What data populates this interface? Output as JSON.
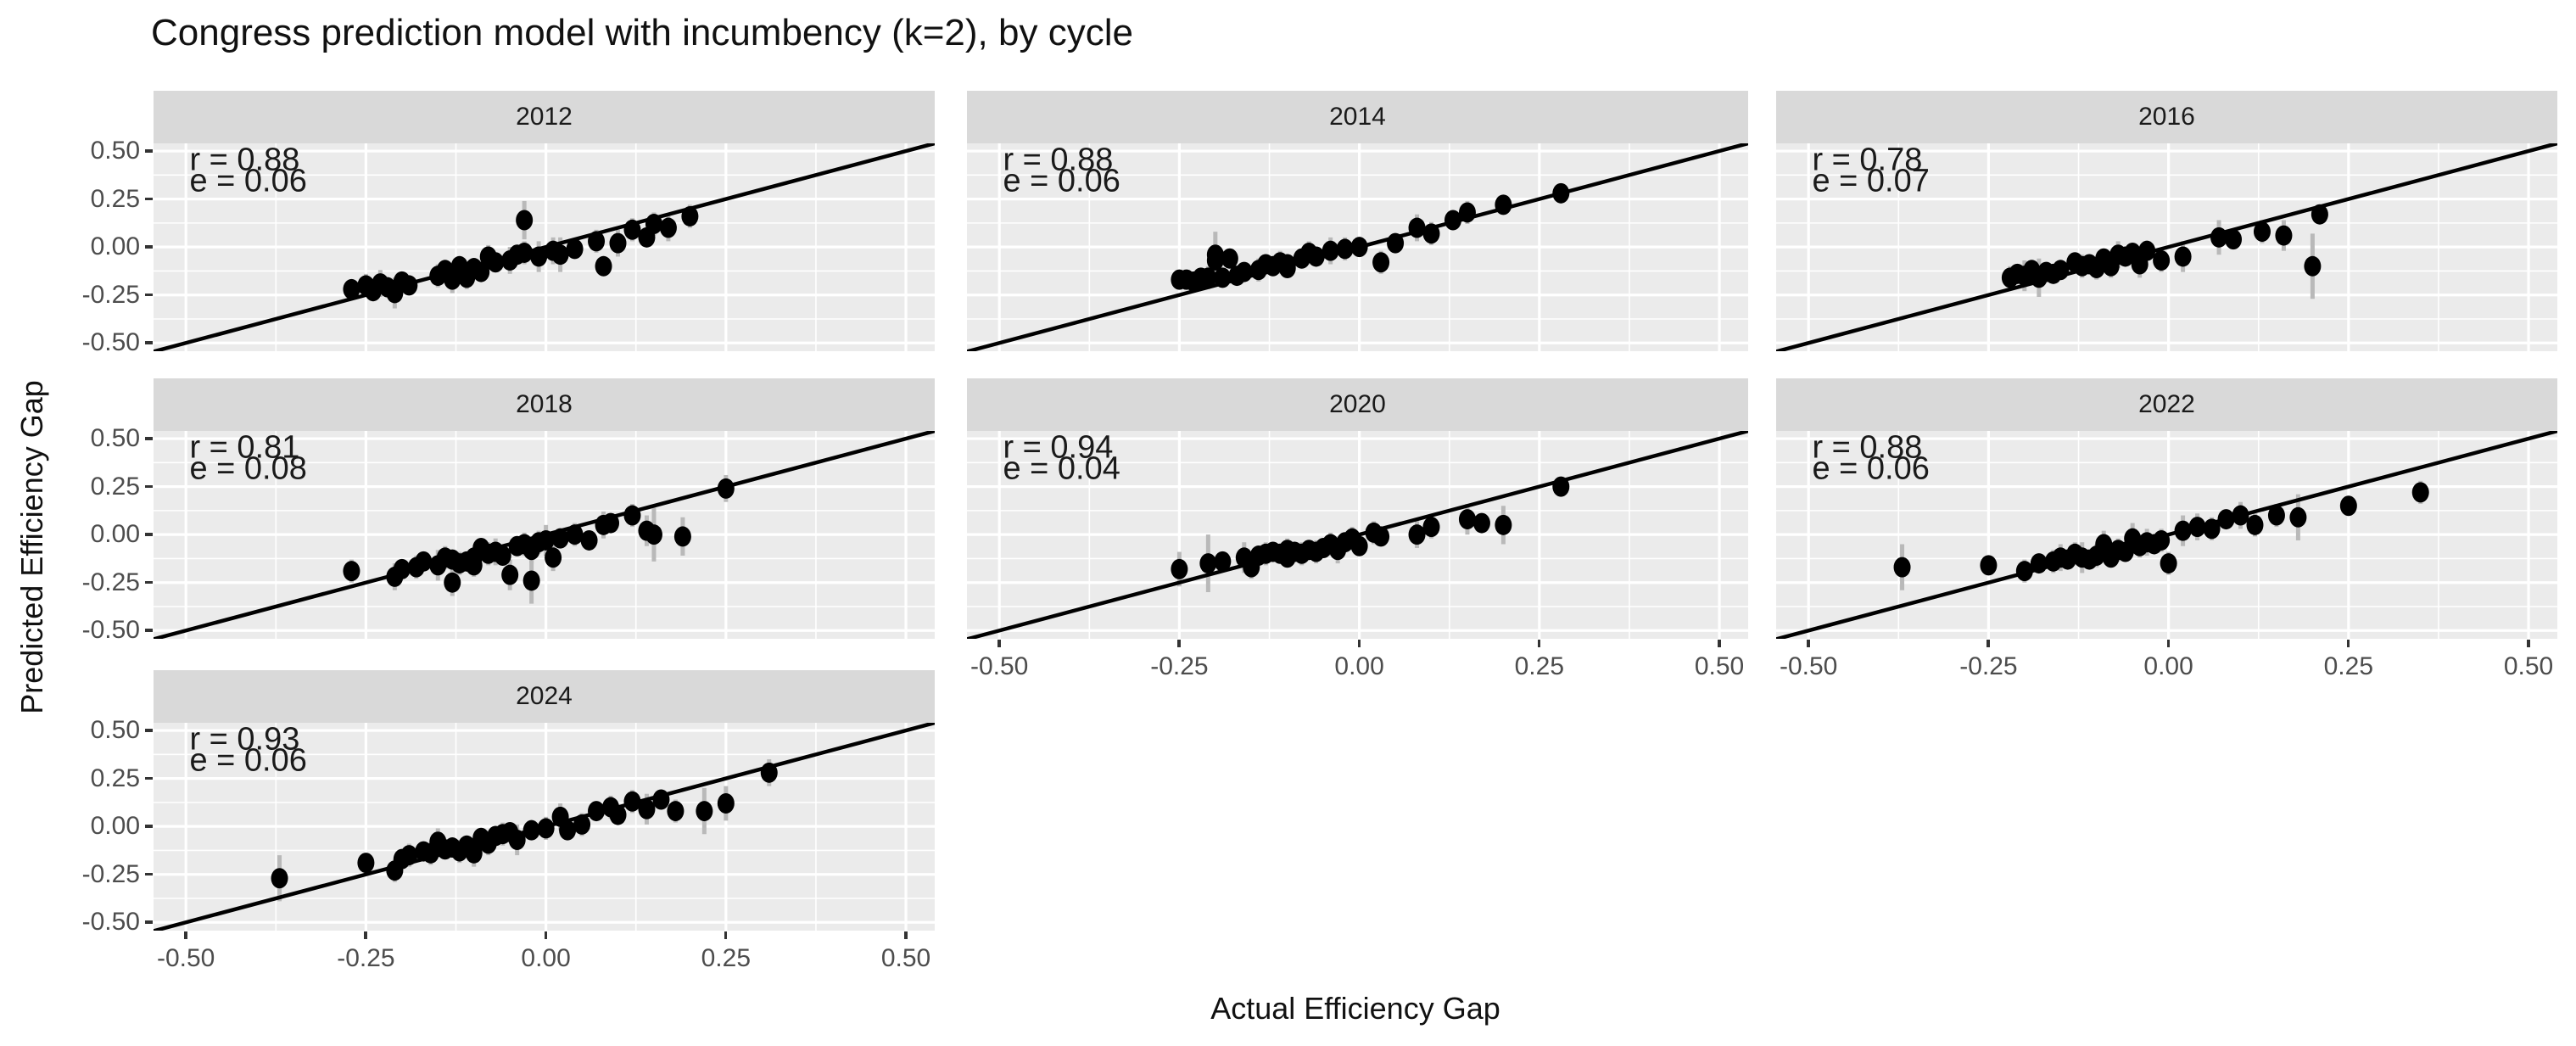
{
  "chart_data": {
    "type": "scatter",
    "title": "Congress prediction model with incumbency (k=2), by cycle",
    "xlabel": "Actual Efficiency Gap",
    "ylabel": "Predicted Efficiency Gap",
    "xlim": [
      -0.55,
      0.55
    ],
    "ylim": [
      -0.55,
      0.55
    ],
    "grid": "on",
    "identity_line": true,
    "legend_position": "none",
    "tick_values": [
      -0.5,
      -0.25,
      0,
      0.25,
      0.5
    ],
    "tick_labels": [
      "-0.50",
      "-0.25",
      "0.00",
      "0.25",
      "0.50"
    ],
    "colors": {
      "panel_bg": "#EBEBEB",
      "strip_bg": "#D9D9D9",
      "grid": "#FFFFFF",
      "point": "#000000",
      "errorbar": "#B9B9B9",
      "identity_line": "#000000",
      "tick_label": "#4D4D4D",
      "annotation": "#1A1A1A"
    },
    "facets": [
      {
        "label": "2012",
        "r": 0.88,
        "e": 0.06,
        "r_label": "r = 0.88",
        "e_label": "e = 0.06",
        "points": [
          [
            -0.27,
            -0.22,
            0.05
          ],
          [
            -0.25,
            -0.2,
            0.06
          ],
          [
            -0.24,
            -0.23,
            0.05
          ],
          [
            -0.23,
            -0.19,
            0.07
          ],
          [
            -0.22,
            -0.21,
            0.04
          ],
          [
            -0.21,
            -0.24,
            0.08
          ],
          [
            -0.2,
            -0.18,
            0.05
          ],
          [
            -0.19,
            -0.2,
            0.04
          ],
          [
            -0.15,
            -0.15,
            0.06
          ],
          [
            -0.14,
            -0.12,
            0.05
          ],
          [
            -0.13,
            -0.17,
            0.07
          ],
          [
            -0.12,
            -0.1,
            0.05
          ],
          [
            -0.12,
            -0.14,
            0.04
          ],
          [
            -0.11,
            -0.16,
            0.06
          ],
          [
            -0.1,
            -0.11,
            0.05
          ],
          [
            -0.09,
            -0.13,
            0.04
          ],
          [
            -0.08,
            -0.05,
            0.06
          ],
          [
            -0.07,
            -0.08,
            0.05
          ],
          [
            -0.05,
            -0.07,
            0.07
          ],
          [
            -0.04,
            -0.04,
            0.05
          ],
          [
            -0.03,
            0.14,
            0.1
          ],
          [
            -0.03,
            -0.03,
            0.06
          ],
          [
            -0.01,
            -0.05,
            0.08
          ],
          [
            0.01,
            -0.02,
            0.07
          ],
          [
            0.02,
            -0.04,
            0.09
          ],
          [
            0.04,
            -0.01,
            0.05
          ],
          [
            0.07,
            0.03,
            0.06
          ],
          [
            0.08,
            -0.1,
            0.05
          ],
          [
            0.1,
            0.02,
            0.07
          ],
          [
            0.12,
            0.09,
            0.06
          ],
          [
            0.14,
            0.05,
            0.05
          ],
          [
            0.15,
            0.12,
            0.06
          ],
          [
            0.17,
            0.1,
            0.07
          ],
          [
            0.2,
            0.16,
            0.06
          ]
        ]
      },
      {
        "label": "2014",
        "r": 0.88,
        "e": 0.06,
        "r_label": "r = 0.88",
        "e_label": "e = 0.06",
        "points": [
          [
            -0.25,
            -0.17,
            0.04
          ],
          [
            -0.24,
            -0.17,
            0.05
          ],
          [
            -0.23,
            -0.18,
            0.04
          ],
          [
            -0.22,
            -0.16,
            0.05
          ],
          [
            -0.21,
            -0.16,
            0.06
          ],
          [
            -0.2,
            -0.04,
            0.12
          ],
          [
            -0.2,
            -0.07,
            0.06
          ],
          [
            -0.19,
            -0.16,
            0.05
          ],
          [
            -0.18,
            -0.06,
            0.05
          ],
          [
            -0.17,
            -0.15,
            0.04
          ],
          [
            -0.16,
            -0.13,
            0.05
          ],
          [
            -0.14,
            -0.12,
            0.06
          ],
          [
            -0.13,
            -0.09,
            0.05
          ],
          [
            -0.12,
            -0.1,
            0.05
          ],
          [
            -0.11,
            -0.08,
            0.06
          ],
          [
            -0.1,
            -0.09,
            0.05
          ],
          [
            -0.1,
            -0.11,
            0.04
          ],
          [
            -0.08,
            -0.06,
            0.05
          ],
          [
            -0.07,
            -0.03,
            0.06
          ],
          [
            -0.06,
            -0.05,
            0.05
          ],
          [
            -0.04,
            -0.02,
            0.07
          ],
          [
            -0.02,
            -0.01,
            0.06
          ],
          [
            0.0,
            0.0,
            0.05
          ],
          [
            0.03,
            -0.08,
            0.06
          ],
          [
            0.05,
            0.02,
            0.05
          ],
          [
            0.08,
            0.1,
            0.07
          ],
          [
            0.1,
            0.07,
            0.06
          ],
          [
            0.13,
            0.14,
            0.05
          ],
          [
            0.15,
            0.18,
            0.06
          ],
          [
            0.2,
            0.22,
            0.05
          ],
          [
            0.28,
            0.28,
            0.04
          ]
        ]
      },
      {
        "label": "2016",
        "r": 0.78,
        "e": 0.07,
        "r_label": "r = 0.78",
        "e_label": "e = 0.07",
        "points": [
          [
            -0.22,
            -0.16,
            0.06
          ],
          [
            -0.21,
            -0.14,
            0.05
          ],
          [
            -0.2,
            -0.15,
            0.08
          ],
          [
            -0.19,
            -0.12,
            0.05
          ],
          [
            -0.18,
            -0.16,
            0.1
          ],
          [
            -0.17,
            -0.13,
            0.04
          ],
          [
            -0.16,
            -0.14,
            0.05
          ],
          [
            -0.15,
            -0.12,
            0.04
          ],
          [
            -0.13,
            -0.08,
            0.05
          ],
          [
            -0.12,
            -0.1,
            0.06
          ],
          [
            -0.11,
            -0.09,
            0.05
          ],
          [
            -0.1,
            -0.11,
            0.06
          ],
          [
            -0.09,
            -0.06,
            0.05
          ],
          [
            -0.08,
            -0.1,
            0.06
          ],
          [
            -0.07,
            -0.04,
            0.07
          ],
          [
            -0.06,
            -0.05,
            0.04
          ],
          [
            -0.05,
            -0.03,
            0.05
          ],
          [
            -0.04,
            -0.09,
            0.07
          ],
          [
            -0.03,
            -0.02,
            0.05
          ],
          [
            -0.01,
            -0.07,
            0.06
          ],
          [
            0.02,
            -0.05,
            0.08
          ],
          [
            0.07,
            0.05,
            0.09
          ],
          [
            0.09,
            0.04,
            0.05
          ],
          [
            0.13,
            0.08,
            0.06
          ],
          [
            0.16,
            0.06,
            0.08
          ],
          [
            0.2,
            -0.1,
            0.17
          ],
          [
            0.21,
            0.17,
            0.05
          ]
        ]
      },
      {
        "label": "2018",
        "r": 0.81,
        "e": 0.08,
        "r_label": "r = 0.81",
        "e_label": "e = 0.08",
        "points": [
          [
            -0.27,
            -0.19,
            0.06
          ],
          [
            -0.21,
            -0.22,
            0.07
          ],
          [
            -0.2,
            -0.18,
            0.05
          ],
          [
            -0.18,
            -0.17,
            0.06
          ],
          [
            -0.17,
            -0.14,
            0.05
          ],
          [
            -0.15,
            -0.16,
            0.08
          ],
          [
            -0.14,
            -0.12,
            0.06
          ],
          [
            -0.13,
            -0.13,
            0.05
          ],
          [
            -0.13,
            -0.25,
            0.07
          ],
          [
            -0.12,
            -0.15,
            0.06
          ],
          [
            -0.11,
            -0.14,
            0.05
          ],
          [
            -0.1,
            -0.12,
            0.04
          ],
          [
            -0.1,
            -0.16,
            0.06
          ],
          [
            -0.09,
            -0.07,
            0.05
          ],
          [
            -0.08,
            -0.1,
            0.06
          ],
          [
            -0.07,
            -0.09,
            0.07
          ],
          [
            -0.06,
            -0.11,
            0.05
          ],
          [
            -0.05,
            -0.21,
            0.08
          ],
          [
            -0.04,
            -0.06,
            0.05
          ],
          [
            -0.03,
            -0.05,
            0.06
          ],
          [
            -0.02,
            -0.08,
            0.07
          ],
          [
            -0.02,
            -0.24,
            0.12
          ],
          [
            -0.01,
            -0.04,
            0.06
          ],
          [
            0.0,
            -0.03,
            0.08
          ],
          [
            0.01,
            -0.12,
            0.07
          ],
          [
            0.02,
            -0.02,
            0.05
          ],
          [
            0.04,
            0.0,
            0.06
          ],
          [
            0.06,
            -0.03,
            0.05
          ],
          [
            0.08,
            0.05,
            0.07
          ],
          [
            0.09,
            0.06,
            0.05
          ],
          [
            0.12,
            0.1,
            0.06
          ],
          [
            0.14,
            0.02,
            0.08
          ],
          [
            0.15,
            0.0,
            0.14
          ],
          [
            0.19,
            -0.01,
            0.1
          ],
          [
            0.25,
            0.24,
            0.07
          ]
        ]
      },
      {
        "label": "2020",
        "r": 0.94,
        "e": 0.04,
        "r_label": "r = 0.94",
        "e_label": "e = 0.04",
        "points": [
          [
            -0.25,
            -0.18,
            0.09
          ],
          [
            -0.21,
            -0.15,
            0.15
          ],
          [
            -0.19,
            -0.14,
            0.05
          ],
          [
            -0.16,
            -0.12,
            0.08
          ],
          [
            -0.15,
            -0.17,
            0.06
          ],
          [
            -0.14,
            -0.11,
            0.05
          ],
          [
            -0.13,
            -0.1,
            0.06
          ],
          [
            -0.12,
            -0.09,
            0.05
          ],
          [
            -0.11,
            -0.1,
            0.05
          ],
          [
            -0.1,
            -0.08,
            0.06
          ],
          [
            -0.1,
            -0.12,
            0.05
          ],
          [
            -0.09,
            -0.09,
            0.04
          ],
          [
            -0.08,
            -0.1,
            0.06
          ],
          [
            -0.07,
            -0.08,
            0.05
          ],
          [
            -0.06,
            -0.09,
            0.06
          ],
          [
            -0.05,
            -0.07,
            0.05
          ],
          [
            -0.04,
            -0.05,
            0.06
          ],
          [
            -0.03,
            -0.08,
            0.07
          ],
          [
            -0.02,
            -0.04,
            0.05
          ],
          [
            -0.01,
            -0.02,
            0.06
          ],
          [
            0.0,
            -0.06,
            0.05
          ],
          [
            0.02,
            0.01,
            0.06
          ],
          [
            0.03,
            -0.01,
            0.05
          ],
          [
            0.08,
            0.0,
            0.07
          ],
          [
            0.1,
            0.04,
            0.06
          ],
          [
            0.15,
            0.08,
            0.08
          ],
          [
            0.17,
            0.06,
            0.05
          ],
          [
            0.2,
            0.05,
            0.1
          ],
          [
            0.28,
            0.25,
            0.05
          ]
        ]
      },
      {
        "label": "2022",
        "r": 0.88,
        "e": 0.06,
        "r_label": "r = 0.88",
        "e_label": "e = 0.06",
        "points": [
          [
            -0.37,
            -0.17,
            0.12
          ],
          [
            -0.25,
            -0.16,
            0.05
          ],
          [
            -0.2,
            -0.19,
            0.06
          ],
          [
            -0.18,
            -0.15,
            0.05
          ],
          [
            -0.16,
            -0.14,
            0.06
          ],
          [
            -0.15,
            -0.12,
            0.07
          ],
          [
            -0.14,
            -0.13,
            0.05
          ],
          [
            -0.13,
            -0.1,
            0.06
          ],
          [
            -0.12,
            -0.12,
            0.08
          ],
          [
            -0.11,
            -0.13,
            0.05
          ],
          [
            -0.1,
            -0.11,
            0.06
          ],
          [
            -0.09,
            -0.05,
            0.07
          ],
          [
            -0.08,
            -0.12,
            0.05
          ],
          [
            -0.07,
            -0.08,
            0.06
          ],
          [
            -0.06,
            -0.09,
            0.05
          ],
          [
            -0.05,
            -0.02,
            0.08
          ],
          [
            -0.04,
            -0.06,
            0.06
          ],
          [
            -0.03,
            -0.04,
            0.07
          ],
          [
            -0.02,
            -0.05,
            0.05
          ],
          [
            -0.01,
            -0.03,
            0.06
          ],
          [
            0.0,
            -0.15,
            0.06
          ],
          [
            0.02,
            0.02,
            0.08
          ],
          [
            0.04,
            0.04,
            0.07
          ],
          [
            0.06,
            0.03,
            0.06
          ],
          [
            0.08,
            0.08,
            0.05
          ],
          [
            0.1,
            0.1,
            0.07
          ],
          [
            0.12,
            0.05,
            0.06
          ],
          [
            0.15,
            0.1,
            0.06
          ],
          [
            0.18,
            0.09,
            0.12
          ],
          [
            0.25,
            0.15,
            0.05
          ],
          [
            0.35,
            0.22,
            0.06
          ]
        ]
      },
      {
        "label": "2024",
        "r": 0.93,
        "e": 0.06,
        "r_label": "r = 0.93",
        "e_label": "e = 0.06",
        "points": [
          [
            -0.37,
            -0.27,
            0.12
          ],
          [
            -0.25,
            -0.19,
            0.05
          ],
          [
            -0.21,
            -0.23,
            0.06
          ],
          [
            -0.2,
            -0.17,
            0.05
          ],
          [
            -0.19,
            -0.15,
            0.06
          ],
          [
            -0.17,
            -0.13,
            0.05
          ],
          [
            -0.16,
            -0.14,
            0.06
          ],
          [
            -0.15,
            -0.08,
            0.07
          ],
          [
            -0.14,
            -0.12,
            0.05
          ],
          [
            -0.13,
            -0.11,
            0.04
          ],
          [
            -0.12,
            -0.13,
            0.06
          ],
          [
            -0.11,
            -0.1,
            0.05
          ],
          [
            -0.1,
            -0.14,
            0.07
          ],
          [
            -0.09,
            -0.06,
            0.05
          ],
          [
            -0.08,
            -0.09,
            0.06
          ],
          [
            -0.07,
            -0.05,
            0.05
          ],
          [
            -0.06,
            -0.04,
            0.06
          ],
          [
            -0.05,
            -0.03,
            0.05
          ],
          [
            -0.04,
            -0.07,
            0.08
          ],
          [
            -0.02,
            -0.02,
            0.05
          ],
          [
            0.0,
            -0.01,
            0.06
          ],
          [
            0.02,
            0.05,
            0.07
          ],
          [
            0.03,
            -0.02,
            0.05
          ],
          [
            0.05,
            0.01,
            0.06
          ],
          [
            0.07,
            0.08,
            0.05
          ],
          [
            0.09,
            0.1,
            0.06
          ],
          [
            0.1,
            0.06,
            0.05
          ],
          [
            0.12,
            0.13,
            0.06
          ],
          [
            0.14,
            0.09,
            0.08
          ],
          [
            0.16,
            0.14,
            0.05
          ],
          [
            0.18,
            0.08,
            0.06
          ],
          [
            0.22,
            0.08,
            0.12
          ],
          [
            0.25,
            0.12,
            0.09
          ],
          [
            0.31,
            0.28,
            0.07
          ]
        ]
      }
    ]
  }
}
